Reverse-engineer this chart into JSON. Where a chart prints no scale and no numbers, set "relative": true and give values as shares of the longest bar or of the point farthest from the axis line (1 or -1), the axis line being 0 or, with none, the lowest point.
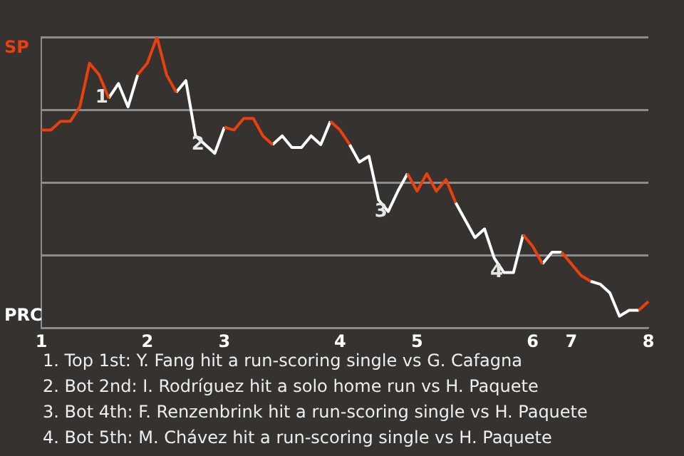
{
  "chart_data": {
    "type": "line",
    "relative": true,
    "legend": false,
    "grid": "y",
    "marker": "none",
    "line_style": "solid",
    "categories": [
      "1",
      null,
      null,
      null,
      null,
      null,
      null,
      null,
      null,
      null,
      null,
      "2",
      null,
      null,
      null,
      null,
      null,
      null,
      null,
      "3",
      null,
      null,
      null,
      null,
      null,
      null,
      null,
      null,
      null,
      null,
      null,
      "4",
      null,
      null,
      null,
      null,
      null,
      null,
      null,
      "5",
      null,
      null,
      null,
      null,
      null,
      null,
      null,
      null,
      null,
      null,
      null,
      "6",
      null,
      null,
      null,
      "7",
      null,
      null,
      null,
      null,
      null,
      null,
      null,
      "8"
    ],
    "series": [
      {
        "color": "#e8400e",
        "values": [
          0.68,
          0.68,
          0.71,
          0.71,
          0.76,
          0.91,
          0.87,
          0.79,
          null,
          null,
          0.87,
          0.91,
          1,
          0.87,
          0.81,
          null,
          null,
          null,
          null,
          0.69,
          0.68,
          0.72,
          0.72,
          0.66,
          0.63,
          null,
          null,
          null,
          null,
          null,
          0.71,
          0.68,
          0.63,
          null,
          null,
          null,
          null,
          null,
          0.53,
          0.47,
          0.53,
          0.47,
          0.51,
          0.43,
          null,
          null,
          null,
          null,
          null,
          null,
          0.32,
          0.28,
          0.22,
          null,
          0.26,
          0.22,
          0.18,
          0.16,
          null,
          null,
          null,
          null,
          0.06,
          0.09
        ]
      },
      {
        "color": "#ffffff",
        "values": [
          null,
          null,
          null,
          null,
          null,
          null,
          null,
          0.79,
          0.84,
          0.76,
          0.87,
          null,
          null,
          null,
          0.81,
          0.85,
          0.66,
          0.63,
          0.6,
          0.69,
          null,
          null,
          null,
          null,
          0.63,
          0.66,
          0.62,
          0.62,
          0.66,
          0.63,
          0.71,
          null,
          0.63,
          0.57,
          0.59,
          0.44,
          0.4,
          0.47,
          0.53,
          null,
          null,
          null,
          null,
          0.43,
          0.37,
          0.31,
          0.34,
          0.24,
          0.19,
          0.19,
          0.32,
          null,
          0.22,
          0.26,
          0.26,
          null,
          null,
          0.16,
          0.15,
          0.12,
          0.04,
          0.06,
          0.06,
          null
        ]
      }
    ],
    "annotations": [
      {
        "text": "1",
        "y": 0.79
      },
      {
        "text": "2",
        "y": 0.63
      },
      {
        "text": "3",
        "y": 0.4
      },
      {
        "text": "4",
        "y": 0.19
      },
      "SP",
      "PRC",
      "1. Top 1st: Y. Fang hit a run-scoring single vs G. Cafagna",
      "2. Bot 2nd: I. Rodríguez hit a solo home run vs H. Paquete",
      "3. Bot 4th: F. Renzenbrink hit a run-scoring single vs H. Paquete",
      "4. Bot 5th: M. Chávez hit a run-scoring single vs H. Paquete"
    ]
  }
}
